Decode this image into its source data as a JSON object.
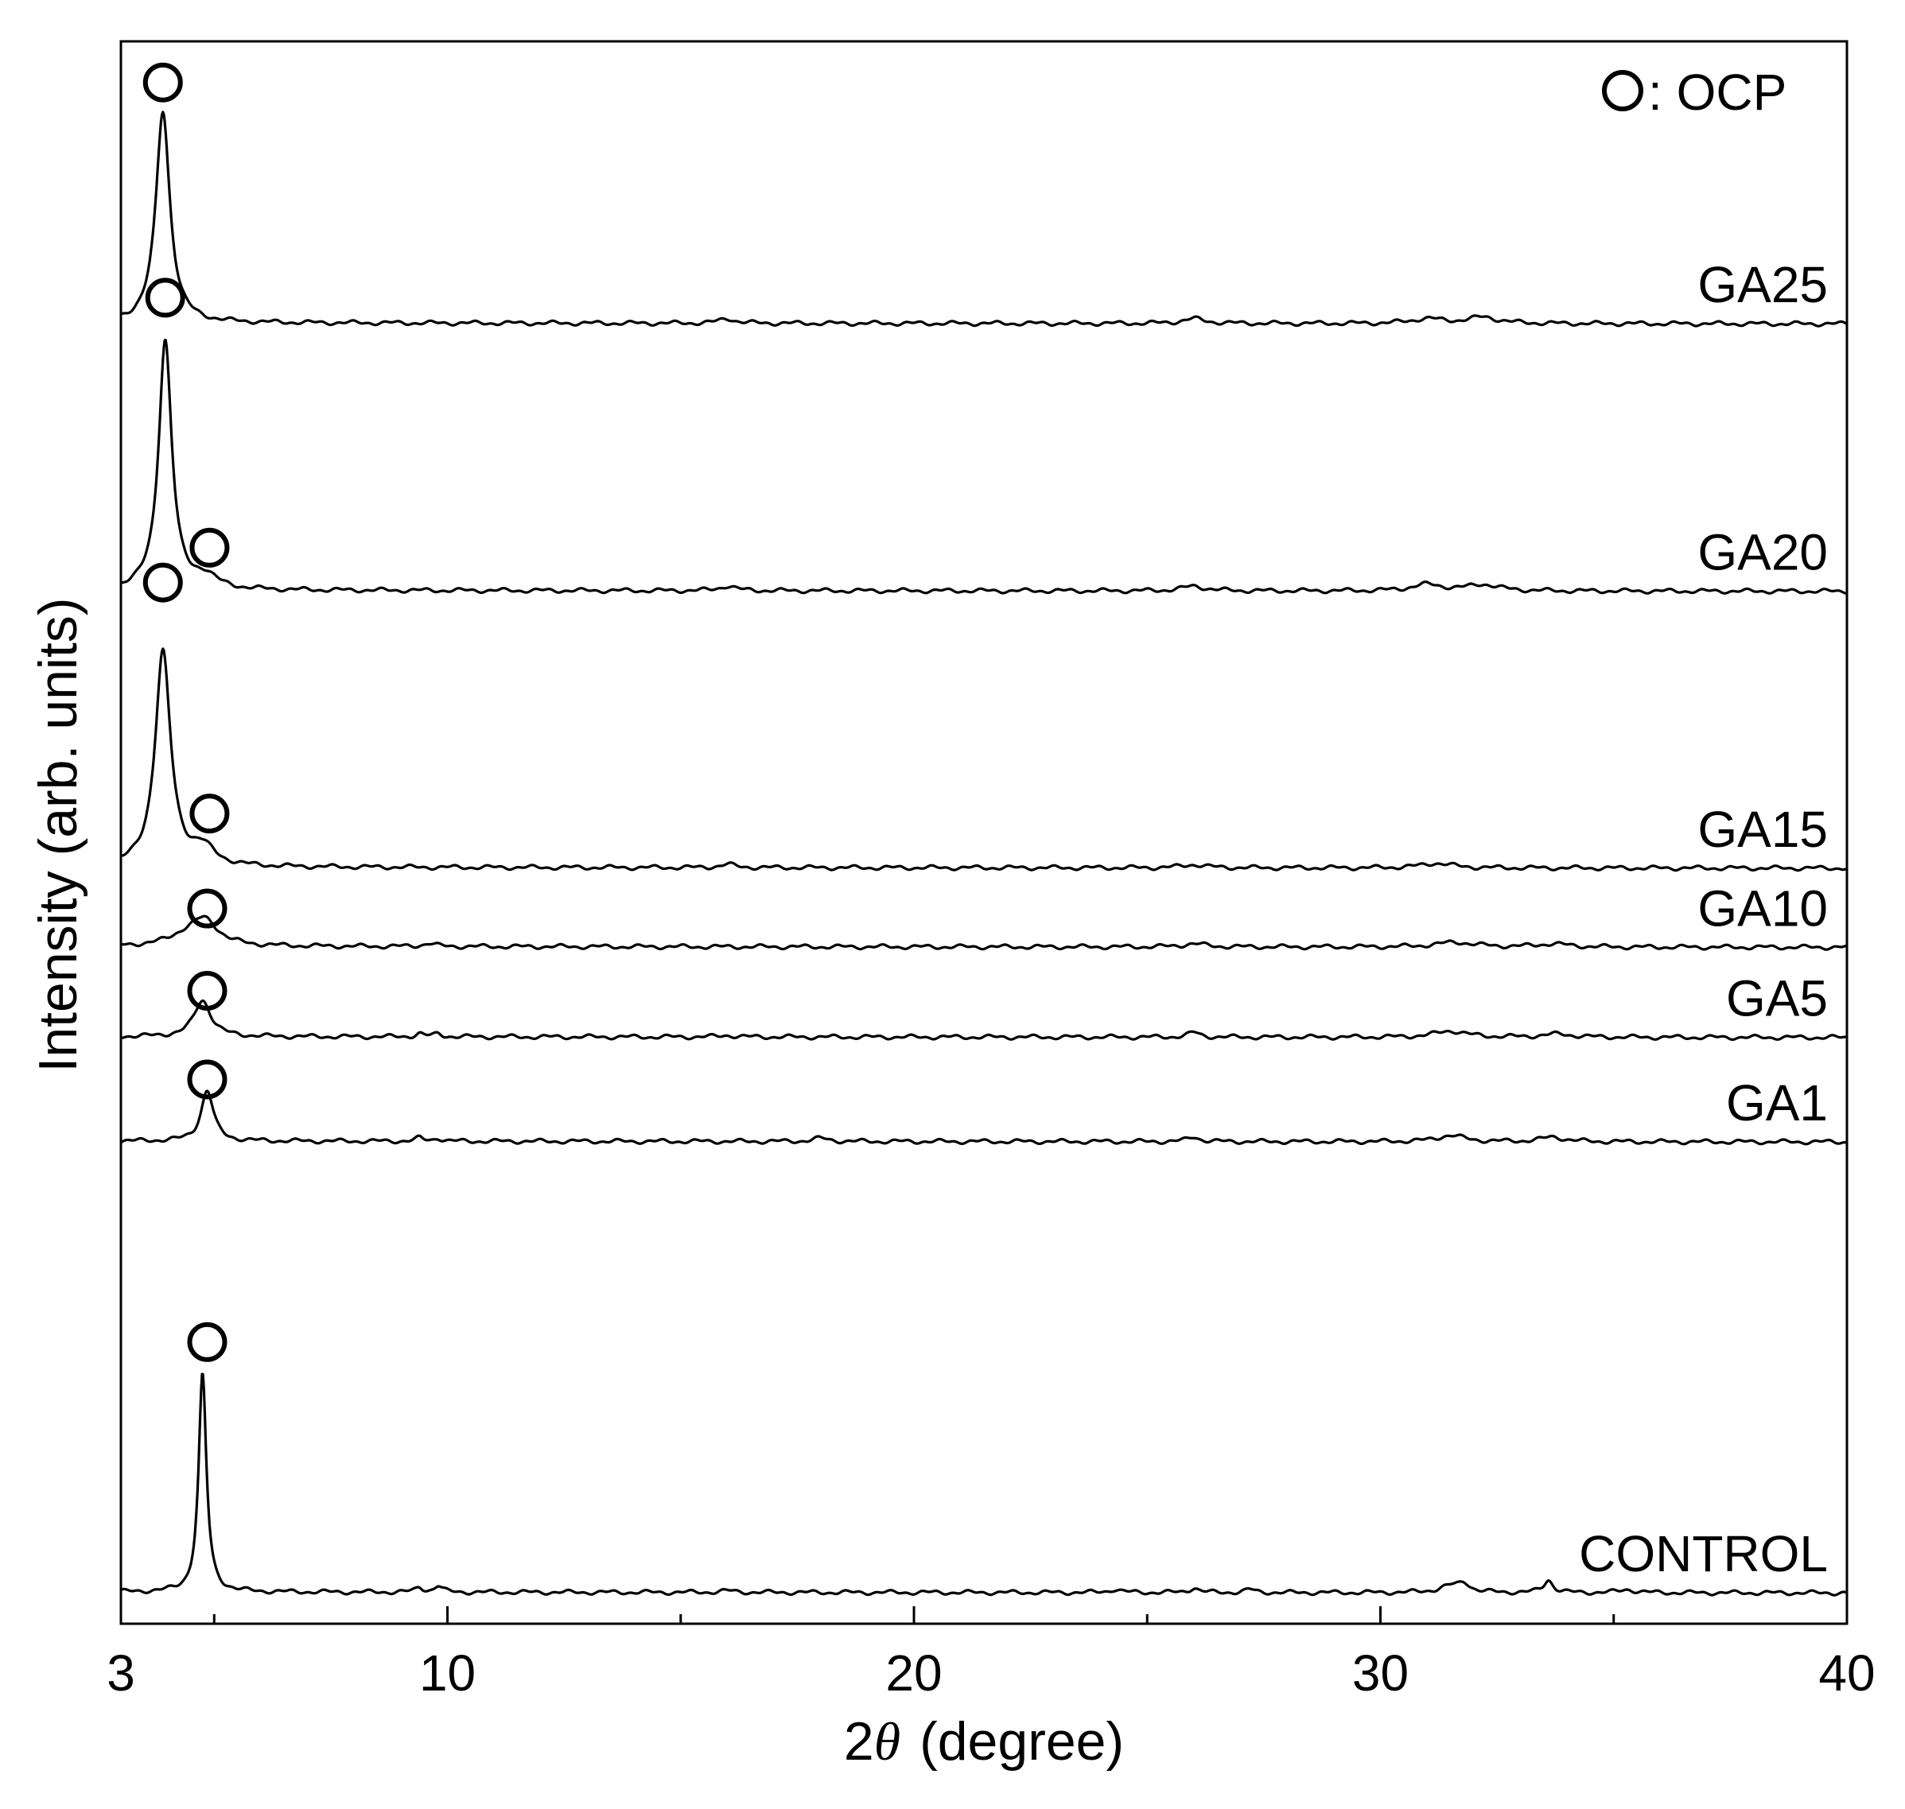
{
  "chart_data": {
    "type": "line",
    "title": "",
    "xlabel_prefix": "2",
    "xlabel_symbol": "θ",
    "xlabel_suffix": "(degree)",
    "ylabel": "Intensity (arb. units)",
    "xlim": [
      3,
      40
    ],
    "xticks_major": [
      3,
      10,
      20,
      30,
      40
    ],
    "xticks_minor": [
      5,
      15,
      25,
      35
    ],
    "yticks": "none",
    "grid": false,
    "legend": {
      "placement": "top-right",
      "marker": "open-circle",
      "text": ": OCP"
    },
    "marker_meaning": "OCP",
    "series": [
      {
        "name": "GA25",
        "baseline": 0.822,
        "peaks": [
          [
            3.9,
            0.134,
            0.18
          ]
        ],
        "minor_peaks": [
          [
            16.0,
            0.003,
            0.2
          ],
          [
            26.0,
            0.003,
            0.3
          ],
          [
            31.0,
            0.003,
            0.4
          ],
          [
            32.2,
            0.004,
            0.4
          ]
        ],
        "markers": [
          3.9
        ],
        "marker_levels": [
          0.974
        ]
      },
      {
        "name": "GA20",
        "baseline": 0.653,
        "peaks": [
          [
            3.95,
            0.158,
            0.17
          ],
          [
            4.8,
            0.008,
            0.3
          ]
        ],
        "minor_peaks": [
          [
            16.0,
            0.003,
            0.2
          ],
          [
            26.0,
            0.003,
            0.3
          ],
          [
            31.0,
            0.004,
            0.4
          ],
          [
            32.2,
            0.004,
            0.4
          ]
        ],
        "markers": [
          3.95,
          4.9
        ],
        "marker_levels": [
          0.838,
          0.68
        ]
      },
      {
        "name": "GA15",
        "baseline": 0.478,
        "peaks": [
          [
            3.9,
            0.136,
            0.2
          ],
          [
            4.75,
            0.011,
            0.3
          ]
        ],
        "minor_peaks": [
          [
            16.0,
            0.002,
            0.2
          ],
          [
            26.0,
            0.002,
            0.3
          ],
          [
            31.2,
            0.003,
            0.4
          ]
        ],
        "markers": [
          3.9,
          4.9
        ],
        "marker_levels": [
          0.658,
          0.512
        ]
      },
      {
        "name": "GA10",
        "baseline": 0.428,
        "peaks": [
          [
            4.8,
            0.015,
            0.35
          ],
          [
            4.4,
            0.006,
            0.45
          ]
        ],
        "minor_peaks": [
          [
            9.6,
            0.002,
            0.15
          ],
          [
            26.0,
            0.002,
            0.3
          ],
          [
            31.6,
            0.003,
            0.5
          ],
          [
            33.7,
            0.002,
            0.4
          ]
        ],
        "markers": [
          4.85
        ],
        "marker_levels": [
          0.452
        ]
      },
      {
        "name": "GA5",
        "baseline": 0.371,
        "peaks": [
          [
            4.75,
            0.023,
            0.22
          ]
        ],
        "minor_peaks": [
          [
            9.4,
            0.002,
            0.1
          ],
          [
            9.8,
            0.002,
            0.1
          ],
          [
            16.0,
            0.001,
            0.2
          ],
          [
            26.0,
            0.003,
            0.15
          ],
          [
            31.5,
            0.004,
            0.4
          ],
          [
            33.8,
            0.002,
            0.4
          ]
        ],
        "markers": [
          4.85
        ],
        "marker_levels": [
          0.4
        ]
      },
      {
        "name": "GA1",
        "baseline": 0.305,
        "peaks": [
          [
            4.85,
            0.032,
            0.16
          ]
        ],
        "minor_peaks": [
          [
            9.4,
            0.002,
            0.1
          ],
          [
            9.8,
            0.002,
            0.1
          ],
          [
            18.0,
            0.002,
            0.2
          ],
          [
            26.0,
            0.003,
            0.15
          ],
          [
            31.5,
            0.004,
            0.35
          ],
          [
            33.7,
            0.003,
            0.3
          ]
        ],
        "markers": [
          4.85
        ],
        "marker_levels": [
          0.344
        ]
      },
      {
        "name": "CONTROL",
        "baseline": 0.02,
        "peaks": [
          [
            4.75,
            0.138,
            0.1
          ]
        ],
        "minor_peaks": [
          [
            9.4,
            0.003,
            0.1
          ],
          [
            9.8,
            0.004,
            0.1
          ],
          [
            16.0,
            0.001,
            0.2
          ],
          [
            24.3,
            0.002,
            0.15
          ],
          [
            26.0,
            0.003,
            0.12
          ],
          [
            27.2,
            0.002,
            0.12
          ],
          [
            31.5,
            0.004,
            0.3
          ],
          [
            31.8,
            0.005,
            0.15
          ],
          [
            33.6,
            0.008,
            0.12
          ],
          [
            35.3,
            0.002,
            0.2
          ]
        ],
        "markers": [
          4.85
        ],
        "marker_levels": [
          0.178
        ]
      }
    ]
  }
}
